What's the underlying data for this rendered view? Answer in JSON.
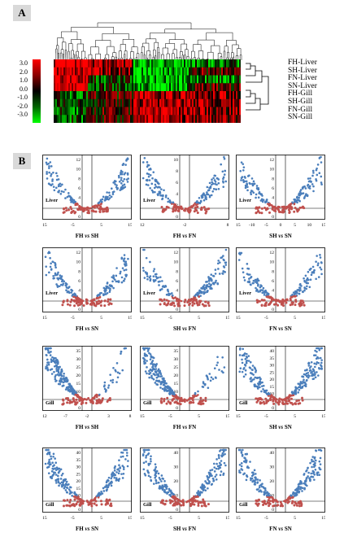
{
  "panels": {
    "a": "A",
    "b": "B"
  },
  "heatmap": {
    "scale_labels": [
      "3.0",
      "2.0",
      "1.0",
      "0.0",
      "-1.0",
      "-2.0",
      "-3.0"
    ],
    "row_labels": [
      "FH-Liver",
      "SH-Liver",
      "FN-Liver",
      "SN-Liver",
      "FH-Gill",
      "SH-Gill",
      "FN-Gill",
      "SN-Gill"
    ],
    "colors": {
      "high": "#ff0000",
      "mid": "#000000",
      "low": "#00ff00"
    }
  },
  "volcano": {
    "point_colors": {
      "sig": "#4a7ebb",
      "nonsig": "#c0504d"
    },
    "plots": [
      {
        "tissue": "Liver",
        "a": "FH",
        "b": "SH",
        "xticks": [
          "-15",
          "-5",
          "5",
          "15"
        ],
        "yticks": [
          "0",
          "2",
          "4",
          "6",
          "8",
          "10",
          "12"
        ]
      },
      {
        "tissue": "Liver",
        "a": "FH",
        "b": "FN",
        "xticks": [
          "-12",
          "-2",
          "8"
        ],
        "yticks": [
          "0",
          "2",
          "4",
          "6",
          "8",
          "10"
        ]
      },
      {
        "tissue": "Liver",
        "a": "SH",
        "b": "SN",
        "xticks": [
          "-15",
          "-10",
          "-5",
          "0",
          "5",
          "10",
          "15"
        ],
        "yticks": [
          "0",
          "2",
          "4",
          "6",
          "8",
          "10",
          "12"
        ]
      },
      {
        "tissue": "Liver",
        "a": "FH",
        "b": "SN",
        "xticks": [
          "-15",
          "-5",
          "5",
          "15"
        ],
        "yticks": [
          "0",
          "2",
          "4",
          "6",
          "8",
          "10",
          "12"
        ]
      },
      {
        "tissue": "Liver",
        "a": "SH",
        "b": "FN",
        "xticks": [
          "-15",
          "-5",
          "5",
          "15"
        ],
        "yticks": [
          "0",
          "2",
          "4",
          "6",
          "8",
          "10",
          "12"
        ]
      },
      {
        "tissue": "Liver",
        "a": "FN",
        "b": "SN",
        "xticks": [
          "-15",
          "-5",
          "5",
          "15"
        ],
        "yticks": [
          "0",
          "2",
          "4",
          "6",
          "8",
          "10",
          "12"
        ]
      },
      {
        "tissue": "Gill",
        "a": "FH",
        "b": "SH",
        "xticks": [
          "-12",
          "-7",
          "-2",
          "3",
          "8"
        ],
        "yticks": [
          "0",
          "5",
          "10",
          "15",
          "20",
          "25",
          "30",
          "35"
        ]
      },
      {
        "tissue": "Gill",
        "a": "FH",
        "b": "FN",
        "xticks": [
          "-15",
          "-5",
          "5",
          "15"
        ],
        "yticks": [
          "0",
          "5",
          "10",
          "15",
          "20",
          "25",
          "30",
          "35"
        ]
      },
      {
        "tissue": "Gill",
        "a": "SH",
        "b": "SN",
        "xticks": [
          "-15",
          "-5",
          "5",
          "15"
        ],
        "yticks": [
          "0",
          "5",
          "10",
          "15",
          "20",
          "25",
          "30",
          "35",
          "40"
        ]
      },
      {
        "tissue": "Gill",
        "a": "FH",
        "b": "SN",
        "xticks": [
          "-15",
          "-5",
          "5",
          "15"
        ],
        "yticks": [
          "0",
          "5",
          "10",
          "15",
          "20",
          "25",
          "30",
          "35",
          "40"
        ]
      },
      {
        "tissue": "Gill",
        "a": "SH",
        "b": "FN",
        "xticks": [
          "-15",
          "-5",
          "5",
          "15"
        ],
        "yticks": [
          "0",
          "10",
          "20",
          "30",
          "40"
        ]
      },
      {
        "tissue": "Gill",
        "a": "FN",
        "b": "SN",
        "xticks": [
          "-15",
          "-5",
          "5",
          "15"
        ],
        "yticks": [
          "0",
          "10",
          "20",
          "30",
          "40"
        ]
      }
    ]
  },
  "vs_word": "vs"
}
